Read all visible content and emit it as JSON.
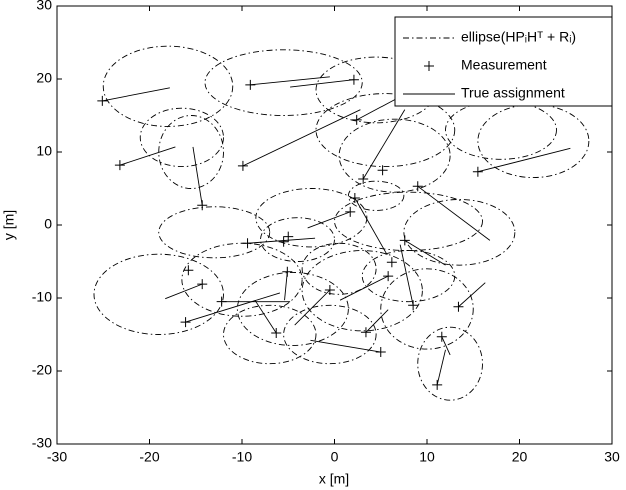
{
  "chart_data": {
    "type": "scatter",
    "xlabel": "x [m]",
    "ylabel": "y [m]",
    "xlim": [
      -30,
      30
    ],
    "ylim": [
      -30,
      30
    ],
    "xticks": [
      -30,
      -20,
      -10,
      0,
      10,
      20,
      30
    ],
    "yticks": [
      -30,
      -20,
      -10,
      0,
      10,
      20,
      30
    ],
    "grid": false,
    "legend": "upper right",
    "series": [
      {
        "name": "ellipse(HPᵢHᵀ + Rᵢ)",
        "type": "ellipse",
        "color": "#000000",
        "cx": [
          -18,
          -5.5,
          4.5,
          5.5,
          6.5,
          -16.5,
          -15.5,
          21.5,
          18,
          -13,
          -2.5,
          8,
          13.5,
          -4,
          -19,
          -10,
          -4.5,
          3,
          10,
          12.5,
          -0.5,
          8,
          0.5,
          -7,
          4.5
        ],
        "cy": [
          19,
          19.5,
          18.5,
          13,
          9.5,
          12,
          10,
          11.5,
          13,
          -1,
          1,
          0.5,
          -1,
          -2,
          -9.5,
          -7.5,
          -11.5,
          -9,
          -11.5,
          -19,
          -15,
          -7,
          -6,
          -15,
          4
        ],
        "rx": [
          7,
          8.5,
          6.5,
          7.5,
          6,
          4.5,
          3.5,
          6,
          6,
          6,
          6,
          8,
          6,
          4,
          7,
          6.5,
          6,
          6.5,
          5,
          3.5,
          5,
          5,
          4,
          5,
          3
        ],
        "ry": [
          5.5,
          4.5,
          4.5,
          5,
          5,
          4,
          5,
          5,
          4,
          3.5,
          4,
          4,
          4.5,
          3,
          5.5,
          5,
          5,
          5.5,
          5.5,
          5,
          4,
          3.5,
          3.5,
          4,
          2
        ]
      },
      {
        "name": "Measurement",
        "type": "scatter",
        "color": "#000000",
        "x": [
          -25.1,
          -9.1,
          2.1,
          2.4,
          -23.2,
          -9.9,
          3.1,
          5.2,
          9.0,
          15.5,
          -14.3,
          1.7,
          2.2,
          -9.4,
          -5.0,
          -5.5,
          7.6,
          6.2,
          -15.8,
          -14.3,
          -5.1,
          -0.5,
          -12.2,
          -16.1,
          5.8,
          8.5,
          13.4,
          11.6,
          11.1,
          3.4,
          5.0,
          -6.3
        ],
        "y": [
          17.0,
          19.2,
          19.9,
          14.4,
          8.2,
          8.1,
          6.3,
          7.5,
          5.3,
          7.3,
          2.7,
          1.8,
          3.7,
          -2.5,
          -1.6,
          -2.3,
          -2.1,
          -5.1,
          -6.2,
          -8.1,
          -6.4,
          -8.9,
          -10.5,
          -13.3,
          -7.0,
          -11.0,
          -11.2,
          -15.3,
          -21.9,
          -14.7,
          -17.4,
          -14.8
        ]
      },
      {
        "name": "True assignment",
        "type": "segment",
        "color": "#000000",
        "x1": [
          -25.1,
          -9.1,
          2.1,
          2.4,
          -23.2,
          -9.9,
          3.1,
          9.0,
          15.5,
          -14.3,
          1.7,
          2.2,
          -9.4,
          7.6,
          -14.3,
          -5.1,
          -0.5,
          -12.2,
          -16.1,
          5.8,
          8.5,
          13.4,
          11.6,
          11.1,
          3.4,
          5.0,
          -6.3
        ],
        "y1": [
          17.0,
          19.2,
          19.9,
          14.4,
          8.2,
          8.1,
          6.3,
          5.3,
          7.3,
          2.7,
          1.8,
          3.7,
          -2.5,
          -2.1,
          -8.1,
          -6.4,
          -8.9,
          -10.5,
          -13.3,
          -7.0,
          -11.0,
          -11.2,
          -15.3,
          -21.9,
          -14.7,
          -17.4,
          -14.8
        ],
        "x2": [
          -17.8,
          -0.5,
          -4.8,
          7.0,
          -17.2,
          2.8,
          7.6,
          16.8,
          25.5,
          -15.3,
          -2.9,
          5.7,
          -2.1,
          12.0,
          -18.3,
          -5.4,
          -4.3,
          -4.8,
          -5.9,
          0.6,
          7.1,
          16.3,
          12.5,
          12.0,
          5.8,
          -2.6,
          -8.6
        ],
        "y2": [
          18.8,
          20.3,
          18.9,
          17.5,
          10.7,
          15.8,
          15.8,
          -2.1,
          10.5,
          10.7,
          -0.4,
          -4.1,
          -1.8,
          -5.5,
          -10.1,
          -10.3,
          -13.7,
          -10.5,
          -9.3,
          -10.3,
          -2.7,
          -7.9,
          -17.8,
          -17.1,
          -11.6,
          -15.8,
          -10.3
        ]
      }
    ]
  }
}
